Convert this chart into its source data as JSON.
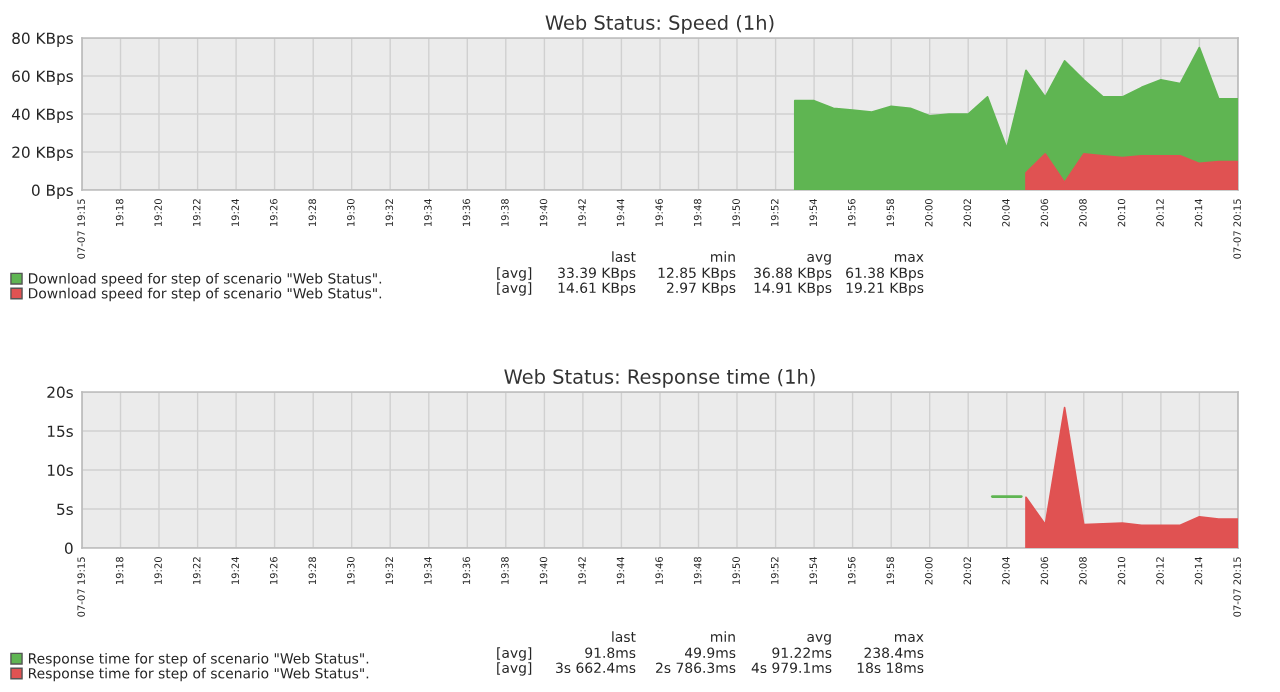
{
  "chart_data": [
    {
      "type": "area",
      "title": "Web Status: Speed (1h)",
      "grid": true,
      "legend": "bottom",
      "xlim": [
        19.2667,
        20.2667
      ],
      "xticks": [
        {
          "value": 19.2667,
          "label": "07-07 19:15"
        },
        {
          "value": 19.3,
          "label": "19:18"
        },
        {
          "value": 19.3333,
          "label": "19:20"
        },
        {
          "value": 19.3667,
          "label": "19:22"
        },
        {
          "value": 19.4,
          "label": "19:24"
        },
        {
          "value": 19.4333,
          "label": "19:26"
        },
        {
          "value": 19.4667,
          "label": "19:28"
        },
        {
          "value": 19.5,
          "label": "19:30"
        },
        {
          "value": 19.5333,
          "label": "19:32"
        },
        {
          "value": 19.5667,
          "label": "19:34"
        },
        {
          "value": 19.6,
          "label": "19:36"
        },
        {
          "value": 19.6333,
          "label": "19:38"
        },
        {
          "value": 19.6667,
          "label": "19:40"
        },
        {
          "value": 19.7,
          "label": "19:42"
        },
        {
          "value": 19.7333,
          "label": "19:44"
        },
        {
          "value": 19.7667,
          "label": "19:46"
        },
        {
          "value": 19.8,
          "label": "19:48"
        },
        {
          "value": 19.8333,
          "label": "19:50"
        },
        {
          "value": 19.8667,
          "label": "19:52"
        },
        {
          "value": 19.9,
          "label": "19:54"
        },
        {
          "value": 19.9333,
          "label": "19:56"
        },
        {
          "value": 19.9667,
          "label": "19:58"
        },
        {
          "value": 20,
          "label": "20:00"
        },
        {
          "value": 20.0333,
          "label": "20:02"
        },
        {
          "value": 20.0667,
          "label": "20:04"
        },
        {
          "value": 20.1,
          "label": "20:06"
        },
        {
          "value": 20.1333,
          "label": "20:08"
        },
        {
          "value": 20.1667,
          "label": "20:10"
        },
        {
          "value": 20.2,
          "label": "20:12"
        },
        {
          "value": 20.2333,
          "label": "20:14"
        },
        {
          "value": 20.2667,
          "label": "07-07 20:15"
        }
      ],
      "ylim": [
        0,
        80
      ],
      "yticks": [
        {
          "value": 0,
          "label": "0 Bps"
        },
        {
          "value": 20,
          "label": "20 KBps"
        },
        {
          "value": 40,
          "label": "40 KBps"
        },
        {
          "value": 60,
          "label": "60 KBps"
        },
        {
          "value": 80,
          "label": "80 KBps"
        }
      ],
      "series": [
        {
          "name": "Download speed for step of scenario \"Web Status\".",
          "color": "#5fb552",
          "x": [
            19.8833,
            19.9,
            19.9167,
            19.9333,
            19.95,
            19.9667,
            19.9833,
            20,
            20.0167,
            20.0333,
            20.05,
            20.0667,
            20.0833,
            20.1,
            20.1167,
            20.1333,
            20.15,
            20.1667,
            20.1833,
            20.2,
            20.2167,
            20.2333,
            20.25,
            20.2667
          ],
          "values": [
            47,
            47,
            43,
            42,
            41,
            44,
            43,
            39,
            40,
            40,
            49,
            22,
            63,
            49,
            68,
            58,
            49,
            49,
            54,
            58,
            56,
            75,
            48,
            48
          ]
        },
        {
          "name": "Download speed for step of scenario \"Web Status\".",
          "color": "#e05252",
          "x": [
            20.0833,
            20.1,
            20.1167,
            20.1333,
            20.15,
            20.1667,
            20.1833,
            20.2,
            20.2167,
            20.2333,
            20.25,
            20.2667
          ],
          "values": [
            9,
            19,
            4,
            19,
            18,
            17,
            18,
            18,
            18,
            14,
            15,
            15
          ]
        }
      ],
      "annotations": [
        "last",
        "min",
        "avg",
        "max",
        "[avg]",
        "33.39 KBps",
        "12.85 KBps",
        "36.88 KBps",
        "61.38 KBps",
        "[avg]",
        "14.61 KBps",
        "2.97 KBps",
        "14.91 KBps",
        "19.21 KBps"
      ]
    },
    {
      "type": "area",
      "title": "Web Status: Response time (1h)",
      "grid": true,
      "legend": "bottom",
      "xlim": [
        19.2667,
        20.2667
      ],
      "xticks": [
        {
          "value": 19.2667,
          "label": "07-07 19:15"
        },
        {
          "value": 19.3,
          "label": "19:18"
        },
        {
          "value": 19.3333,
          "label": "19:20"
        },
        {
          "value": 19.3667,
          "label": "19:22"
        },
        {
          "value": 19.4,
          "label": "19:24"
        },
        {
          "value": 19.4333,
          "label": "19:26"
        },
        {
          "value": 19.4667,
          "label": "19:28"
        },
        {
          "value": 19.5,
          "label": "19:30"
        },
        {
          "value": 19.5333,
          "label": "19:32"
        },
        {
          "value": 19.5667,
          "label": "19:34"
        },
        {
          "value": 19.6,
          "label": "19:36"
        },
        {
          "value": 19.6333,
          "label": "19:38"
        },
        {
          "value": 19.6667,
          "label": "19:40"
        },
        {
          "value": 19.7,
          "label": "19:42"
        },
        {
          "value": 19.7333,
          "label": "19:44"
        },
        {
          "value": 19.7667,
          "label": "19:46"
        },
        {
          "value": 19.8,
          "label": "19:48"
        },
        {
          "value": 19.8333,
          "label": "19:50"
        },
        {
          "value": 19.8667,
          "label": "19:52"
        },
        {
          "value": 19.9,
          "label": "19:54"
        },
        {
          "value": 19.9333,
          "label": "19:56"
        },
        {
          "value": 19.9667,
          "label": "19:58"
        },
        {
          "value": 20,
          "label": "20:00"
        },
        {
          "value": 20.0333,
          "label": "20:02"
        },
        {
          "value": 20.0667,
          "label": "20:04"
        },
        {
          "value": 20.1,
          "label": "20:06"
        },
        {
          "value": 20.1333,
          "label": "20:08"
        },
        {
          "value": 20.1667,
          "label": "20:10"
        },
        {
          "value": 20.2,
          "label": "20:12"
        },
        {
          "value": 20.2333,
          "label": "20:14"
        },
        {
          "value": 20.2667,
          "label": "07-07 20:15"
        }
      ],
      "ylim": [
        0,
        20
      ],
      "yticks": [
        0,
        {
          "value": 5,
          "label": "5s"
        },
        {
          "value": 10,
          "label": "10s"
        },
        {
          "value": 15,
          "label": "15s"
        },
        {
          "value": 20,
          "label": "20s"
        }
      ],
      "series": [
        {
          "name": "Response time for step of scenario \"Web Status\".",
          "color": "#5fb552",
          "type": "line",
          "x": [
            20.0542,
            20.0792
          ],
          "values": [
            6.6,
            6.6
          ]
        },
        {
          "name": "Response time for step of scenario \"Web Status\".",
          "color": "#e05252",
          "x": [
            20.0833,
            20.1,
            20.1167,
            20.1333,
            20.1667,
            20.1833,
            20.2167,
            20.2333,
            20.25,
            20.2667
          ],
          "values": [
            6.5,
            3,
            18,
            3,
            3.2,
            2.9,
            2.9,
            4,
            3.7,
            3.7
          ]
        }
      ],
      "annotations": [
        "last",
        "min",
        "avg",
        "max",
        "[avg]",
        "91.8ms",
        "49.9ms",
        "91.22ms",
        "238.4ms",
        "[avg]",
        "3s 662.4ms",
        "2s 786.3ms",
        "4s 979.1ms",
        "18s 18ms"
      ]
    }
  ]
}
